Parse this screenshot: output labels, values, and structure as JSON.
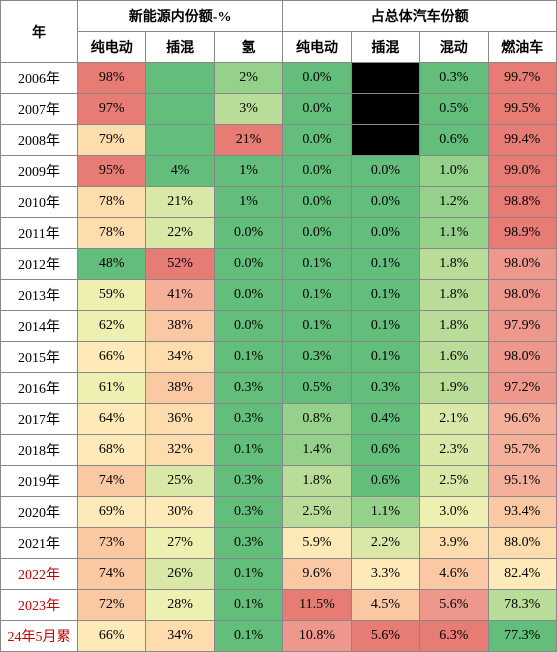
{
  "headers": {
    "year": "年",
    "group1": "新能源内份额-%",
    "group2": "占总体汽车份额",
    "sub": [
      "纯电动",
      "插混",
      "氢",
      "纯电动",
      "插混",
      "混动",
      "燃油车"
    ]
  },
  "palette": {
    "deep_red": "#e67c73",
    "red": "#ee978d",
    "orange_red": "#f5b09a",
    "orange": "#fbc8a4",
    "light_orange": "#fddcad",
    "yellow": "#feeab8",
    "light_yellow": "#eef0b1",
    "pale_green": "#d9e8a6",
    "light_green": "#b9dc98",
    "green": "#95d18a",
    "deep_green": "#63be7b"
  },
  "rows": [
    {
      "year": "2006年",
      "red": false,
      "cells": [
        {
          "v": "98%",
          "c": "deep_red"
        },
        {
          "v": "",
          "c": "deep_green"
        },
        {
          "v": "2%",
          "c": "green"
        },
        {
          "v": "0.0%",
          "c": "deep_green"
        },
        {
          "v": "",
          "c": "black"
        },
        {
          "v": "0.3%",
          "c": "deep_green"
        },
        {
          "v": "99.7%",
          "c": "deep_red"
        }
      ]
    },
    {
      "year": "2007年",
      "red": false,
      "cells": [
        {
          "v": "97%",
          "c": "deep_red"
        },
        {
          "v": "",
          "c": "deep_green"
        },
        {
          "v": "3%",
          "c": "light_green"
        },
        {
          "v": "0.0%",
          "c": "deep_green"
        },
        {
          "v": "",
          "c": "black"
        },
        {
          "v": "0.5%",
          "c": "deep_green"
        },
        {
          "v": "99.5%",
          "c": "deep_red"
        }
      ]
    },
    {
      "year": "2008年",
      "red": false,
      "cells": [
        {
          "v": "79%",
          "c": "light_orange"
        },
        {
          "v": "",
          "c": "deep_green"
        },
        {
          "v": "21%",
          "c": "deep_red"
        },
        {
          "v": "0.0%",
          "c": "deep_green"
        },
        {
          "v": "",
          "c": "black"
        },
        {
          "v": "0.6%",
          "c": "deep_green"
        },
        {
          "v": "99.4%",
          "c": "deep_red"
        }
      ]
    },
    {
      "year": "2009年",
      "red": false,
      "cells": [
        {
          "v": "95%",
          "c": "deep_red"
        },
        {
          "v": "4%",
          "c": "deep_green"
        },
        {
          "v": "1%",
          "c": "deep_green"
        },
        {
          "v": "0.0%",
          "c": "deep_green"
        },
        {
          "v": "0.0%",
          "c": "deep_green"
        },
        {
          "v": "1.0%",
          "c": "green"
        },
        {
          "v": "99.0%",
          "c": "deep_red"
        }
      ]
    },
    {
      "year": "2010年",
      "red": false,
      "cells": [
        {
          "v": "78%",
          "c": "light_orange"
        },
        {
          "v": "21%",
          "c": "pale_green"
        },
        {
          "v": "1%",
          "c": "deep_green"
        },
        {
          "v": "0.0%",
          "c": "deep_green"
        },
        {
          "v": "0.0%",
          "c": "deep_green"
        },
        {
          "v": "1.2%",
          "c": "green"
        },
        {
          "v": "98.8%",
          "c": "deep_red"
        }
      ]
    },
    {
      "year": "2011年",
      "red": false,
      "cells": [
        {
          "v": "78%",
          "c": "light_orange"
        },
        {
          "v": "22%",
          "c": "pale_green"
        },
        {
          "v": "0.0%",
          "c": "deep_green"
        },
        {
          "v": "0.0%",
          "c": "deep_green"
        },
        {
          "v": "0.0%",
          "c": "deep_green"
        },
        {
          "v": "1.1%",
          "c": "green"
        },
        {
          "v": "98.9%",
          "c": "deep_red"
        }
      ]
    },
    {
      "year": "2012年",
      "red": false,
      "cells": [
        {
          "v": "48%",
          "c": "deep_green"
        },
        {
          "v": "52%",
          "c": "deep_red"
        },
        {
          "v": "0.0%",
          "c": "deep_green"
        },
        {
          "v": "0.1%",
          "c": "deep_green"
        },
        {
          "v": "0.1%",
          "c": "deep_green"
        },
        {
          "v": "1.8%",
          "c": "light_green"
        },
        {
          "v": "98.0%",
          "c": "red"
        }
      ]
    },
    {
      "year": "2013年",
      "red": false,
      "cells": [
        {
          "v": "59%",
          "c": "light_yellow"
        },
        {
          "v": "41%",
          "c": "orange_red"
        },
        {
          "v": "0.0%",
          "c": "deep_green"
        },
        {
          "v": "0.1%",
          "c": "deep_green"
        },
        {
          "v": "0.1%",
          "c": "deep_green"
        },
        {
          "v": "1.8%",
          "c": "light_green"
        },
        {
          "v": "98.0%",
          "c": "red"
        }
      ]
    },
    {
      "year": "2014年",
      "red": false,
      "cells": [
        {
          "v": "62%",
          "c": "light_yellow"
        },
        {
          "v": "38%",
          "c": "orange"
        },
        {
          "v": "0.0%",
          "c": "deep_green"
        },
        {
          "v": "0.1%",
          "c": "deep_green"
        },
        {
          "v": "0.1%",
          "c": "deep_green"
        },
        {
          "v": "1.8%",
          "c": "light_green"
        },
        {
          "v": "97.9%",
          "c": "red"
        }
      ]
    },
    {
      "year": "2015年",
      "red": false,
      "cells": [
        {
          "v": "66%",
          "c": "yellow"
        },
        {
          "v": "34%",
          "c": "light_orange"
        },
        {
          "v": "0.1%",
          "c": "deep_green"
        },
        {
          "v": "0.3%",
          "c": "deep_green"
        },
        {
          "v": "0.1%",
          "c": "deep_green"
        },
        {
          "v": "1.6%",
          "c": "light_green"
        },
        {
          "v": "98.0%",
          "c": "red"
        }
      ]
    },
    {
      "year": "2016年",
      "red": false,
      "cells": [
        {
          "v": "61%",
          "c": "light_yellow"
        },
        {
          "v": "38%",
          "c": "orange"
        },
        {
          "v": "0.3%",
          "c": "deep_green"
        },
        {
          "v": "0.5%",
          "c": "deep_green"
        },
        {
          "v": "0.3%",
          "c": "deep_green"
        },
        {
          "v": "1.9%",
          "c": "light_green"
        },
        {
          "v": "97.2%",
          "c": "red"
        }
      ]
    },
    {
      "year": "2017年",
      "red": false,
      "cells": [
        {
          "v": "64%",
          "c": "yellow"
        },
        {
          "v": "36%",
          "c": "light_orange"
        },
        {
          "v": "0.3%",
          "c": "deep_green"
        },
        {
          "v": "0.8%",
          "c": "green"
        },
        {
          "v": "0.4%",
          "c": "deep_green"
        },
        {
          "v": "2.1%",
          "c": "pale_green"
        },
        {
          "v": "96.6%",
          "c": "orange_red"
        }
      ]
    },
    {
      "year": "2018年",
      "red": false,
      "cells": [
        {
          "v": "68%",
          "c": "yellow"
        },
        {
          "v": "32%",
          "c": "light_orange"
        },
        {
          "v": "0.1%",
          "c": "deep_green"
        },
        {
          "v": "1.4%",
          "c": "green"
        },
        {
          "v": "0.6%",
          "c": "deep_green"
        },
        {
          "v": "2.3%",
          "c": "pale_green"
        },
        {
          "v": "95.7%",
          "c": "orange_red"
        }
      ]
    },
    {
      "year": "2019年",
      "red": false,
      "cells": [
        {
          "v": "74%",
          "c": "orange"
        },
        {
          "v": "25%",
          "c": "pale_green"
        },
        {
          "v": "0.3%",
          "c": "deep_green"
        },
        {
          "v": "1.8%",
          "c": "light_green"
        },
        {
          "v": "0.6%",
          "c": "deep_green"
        },
        {
          "v": "2.5%",
          "c": "pale_green"
        },
        {
          "v": "95.1%",
          "c": "orange_red"
        }
      ]
    },
    {
      "year": "2020年",
      "red": false,
      "cells": [
        {
          "v": "69%",
          "c": "yellow"
        },
        {
          "v": "30%",
          "c": "yellow"
        },
        {
          "v": "0.3%",
          "c": "deep_green"
        },
        {
          "v": "2.5%",
          "c": "light_green"
        },
        {
          "v": "1.1%",
          "c": "green"
        },
        {
          "v": "3.0%",
          "c": "light_yellow"
        },
        {
          "v": "93.4%",
          "c": "orange"
        }
      ]
    },
    {
      "year": "2021年",
      "red": false,
      "cells": [
        {
          "v": "73%",
          "c": "orange"
        },
        {
          "v": "27%",
          "c": "light_yellow"
        },
        {
          "v": "0.3%",
          "c": "deep_green"
        },
        {
          "v": "5.9%",
          "c": "yellow"
        },
        {
          "v": "2.2%",
          "c": "pale_green"
        },
        {
          "v": "3.9%",
          "c": "light_orange"
        },
        {
          "v": "88.0%",
          "c": "light_orange"
        }
      ]
    },
    {
      "year": "2022年",
      "red": true,
      "cells": [
        {
          "v": "74%",
          "c": "orange"
        },
        {
          "v": "26%",
          "c": "pale_green"
        },
        {
          "v": "0.1%",
          "c": "deep_green"
        },
        {
          "v": "9.6%",
          "c": "orange"
        },
        {
          "v": "3.3%",
          "c": "yellow"
        },
        {
          "v": "4.6%",
          "c": "orange"
        },
        {
          "v": "82.4%",
          "c": "yellow"
        }
      ]
    },
    {
      "year": "2023年",
      "red": true,
      "cells": [
        {
          "v": "72%",
          "c": "orange"
        },
        {
          "v": "28%",
          "c": "light_yellow"
        },
        {
          "v": "0.1%",
          "c": "deep_green"
        },
        {
          "v": "11.5%",
          "c": "deep_red"
        },
        {
          "v": "4.5%",
          "c": "orange"
        },
        {
          "v": "5.6%",
          "c": "red"
        },
        {
          "v": "78.3%",
          "c": "light_green"
        }
      ]
    },
    {
      "year": "24年5月累",
      "red": true,
      "cells": [
        {
          "v": "66%",
          "c": "yellow"
        },
        {
          "v": "34%",
          "c": "light_orange"
        },
        {
          "v": "0.1%",
          "c": "deep_green"
        },
        {
          "v": "10.8%",
          "c": "red"
        },
        {
          "v": "5.6%",
          "c": "deep_red"
        },
        {
          "v": "6.3%",
          "c": "deep_red"
        },
        {
          "v": "77.3%",
          "c": "deep_green"
        }
      ]
    }
  ]
}
